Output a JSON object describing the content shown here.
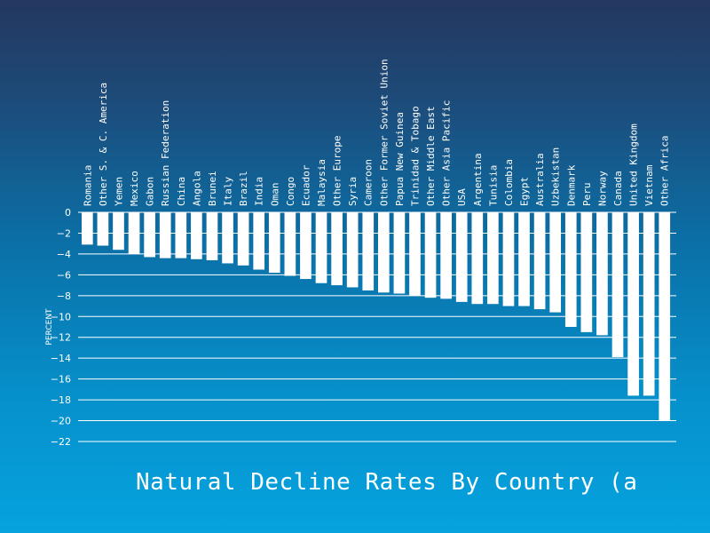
{
  "chart_data": {
    "type": "bar",
    "title": "Natural Decline Rates By Country (a",
    "ylabel": "PERCENT",
    "xlabel": "",
    "ylim": [
      -22,
      0
    ],
    "yticks": [
      0,
      -2,
      -4,
      -6,
      -8,
      -10,
      -12,
      -14,
      -16,
      -18,
      -20,
      -22
    ],
    "ytick_labels": [
      "0",
      "−2",
      "−4",
      "−6",
      "−8",
      "−10",
      "−12",
      "−14",
      "−16",
      "−18",
      "−20",
      "−22"
    ],
    "grid": true,
    "categories": [
      "Romania",
      "Other S. & C. America",
      "Yemen",
      "Mexico",
      "Gabon",
      "Russian Federation",
      "China",
      "Angola",
      "Brunei",
      "Italy",
      "Brazil",
      "India",
      "Oman",
      "Congo",
      "Ecuador",
      "Malaysia",
      "Other Europe",
      "Syria",
      "Cameroon",
      "Other Former Soviet Union",
      "Papua New Guinea",
      "Trinidad & Tobago",
      "Other Middle East",
      "Other Asia Pacific",
      "USA",
      "Argentina",
      "Tunisia",
      "Colombia",
      "Egypt",
      "Australia",
      "Uzbekistan",
      "Denmark",
      "Peru",
      "Norway",
      "Canada",
      "United Kingdom",
      "Vietnam",
      "Other Africa"
    ],
    "values": [
      -3.1,
      -3.2,
      -3.6,
      -4.0,
      -4.3,
      -4.4,
      -4.4,
      -4.5,
      -4.6,
      -4.9,
      -5.1,
      -5.5,
      -5.8,
      -6.1,
      -6.4,
      -6.8,
      -7.0,
      -7.2,
      -7.5,
      -7.7,
      -7.8,
      -8.0,
      -8.2,
      -8.3,
      -8.6,
      -8.8,
      -8.8,
      -9.0,
      -9.0,
      -9.3,
      -9.6,
      -11.0,
      -11.5,
      -11.8,
      -13.9,
      -17.6,
      -17.6,
      -20.0
    ]
  }
}
